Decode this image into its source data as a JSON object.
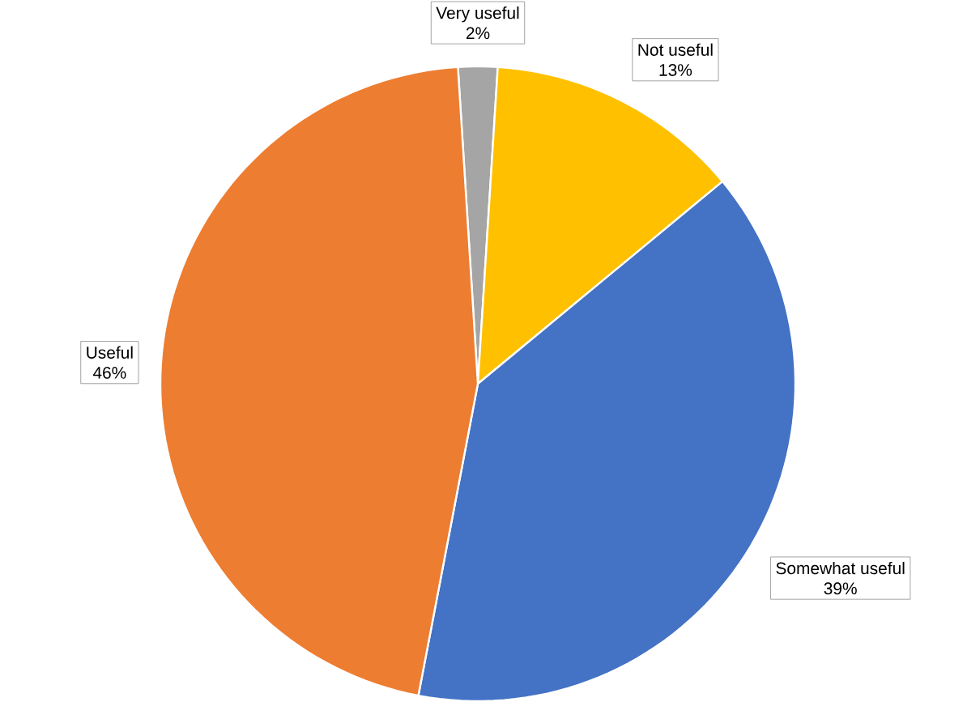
{
  "chart_data": {
    "type": "pie",
    "categories": [
      "Very useful",
      "Not useful",
      "Somewhat useful",
      "Useful"
    ],
    "values": [
      2,
      13,
      39,
      46
    ],
    "colors": [
      "#a5a5a5",
      "#ffc000",
      "#4472c4",
      "#ed7d31"
    ],
    "value_labels": [
      "2%",
      "13%",
      "39%",
      "46%"
    ]
  }
}
